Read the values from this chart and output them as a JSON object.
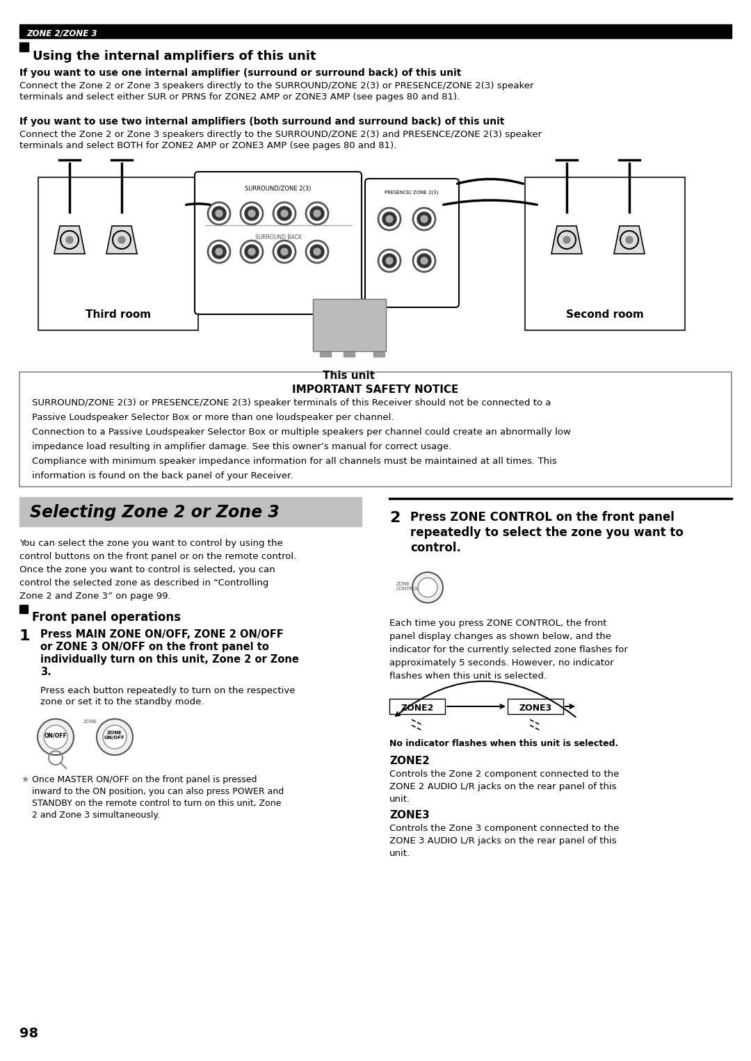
{
  "page_bg": "#ffffff",
  "header_bar_color": "#000000",
  "header_text": "ZONE 2/ZONE 3",
  "header_text_color": "#ffffff",
  "section_title_internal": "Using the internal amplifiers of this unit",
  "subsection1_bold": "If you want to use one internal amplifier (surround or surround back) of this unit",
  "subsection1_text1": "Connect the Zone 2 or Zone 3 speakers directly to the SURROUND/ZONE 2(3) or PRESENCE/ZONE 2(3) speaker",
  "subsection1_text2": "terminals and select either SUR or PRNS for ZONE2 AMP or ZONE3 AMP (see pages 80 and 81).",
  "subsection2_bold": "If you want to use two internal amplifiers (both surround and surround back) of this unit",
  "subsection2_text1": "Connect the Zone 2 or Zone 3 speakers directly to the SURROUND/ZONE 2(3) and PRESENCE/ZONE 2(3) speaker",
  "subsection2_text2": "terminals and select BOTH for ZONE2 AMP or ZONE3 AMP (see pages 80 and 81).",
  "diagram_label_left": "Third room",
  "diagram_label_unit": "This unit",
  "diagram_label_right": "Second room",
  "safety_box_title": "IMPORTANT SAFETY NOTICE",
  "safety_line1": "SURROUND/ZONE 2(3) or PRESENCE/ZONE 2(3) speaker terminals of this Receiver should not be connected to a",
  "safety_line2": "Passive Loudspeaker Selector Box or more than one loudspeaker per channel.",
  "safety_line3": "Connection to a Passive Loudspeaker Selector Box or multiple speakers per channel could create an abnormally low",
  "safety_line4": "impedance load resulting in amplifier damage. See this owner’s manual for correct usage.",
  "safety_line5": "Compliance with minimum speaker impedance information for all channels must be maintained at all times. This",
  "safety_line6": "information is found on the back panel of your Receiver.",
  "selecting_title": "Selecting Zone 2 or Zone 3",
  "selecting_title_bg": "#c0c0c0",
  "left_body1": "You can select the zone you want to control by using the",
  "left_body2": "control buttons on the front panel or on the remote control.",
  "left_body3": "Once the zone you want to control is selected, you can",
  "left_body4": "control the selected zone as described in “Controlling",
  "left_body5": "Zone 2 and Zone 3” on page 99.",
  "front_panel_title": "Front panel operations",
  "step1_num": "1",
  "step1_bold1": "Press MAIN ZONE ON/OFF, ZONE 2 ON/OFF",
  "step1_bold2": "or ZONE 3 ON/OFF on the front panel to",
  "step1_bold3": "individually turn on this unit, Zone 2 or Zone",
  "step1_bold4": "3.",
  "step1_text1": "Press each button repeatedly to turn on the respective",
  "step1_text2": "zone or set it to the standby mode.",
  "note_text1": "Once MASTER ON/OFF on the front panel is pressed",
  "note_text2": "inward to the ON position, you can also press POWER and",
  "note_text3": "STANDBY on the remote control to turn on this unit, Zone",
  "note_text4": "2 and Zone 3 simultaneously.",
  "step2_num": "2",
  "step2_bold1": "Press ZONE CONTROL on the front panel",
  "step2_bold2": "repeatedly to select the zone you want to",
  "step2_bold3": "control.",
  "step2_body1": "Each time you press ZONE CONTROL, the front",
  "step2_body2": "panel display changes as shown below, and the",
  "step2_body3": "indicator for the currently selected zone flashes for",
  "step2_body4": "approximately 5 seconds. However, no indicator",
  "step2_body5": "flashes when this unit is selected.",
  "zone_flow_label": "No indicator flashes when this unit is selected.",
  "zone2_title": "ZONE2",
  "zone2_text1": "Controls the Zone 2 component connected to the",
  "zone2_text2": "ZONE 2 AUDIO L/R jacks on the rear panel of this",
  "zone2_text3": "unit.",
  "zone3_title": "ZONE3",
  "zone3_text1": "Controls the Zone 3 component connected to the",
  "zone3_text2": "ZONE 3 AUDIO L/R jacks on the rear panel of this",
  "zone3_text3": "unit.",
  "page_number": "98"
}
